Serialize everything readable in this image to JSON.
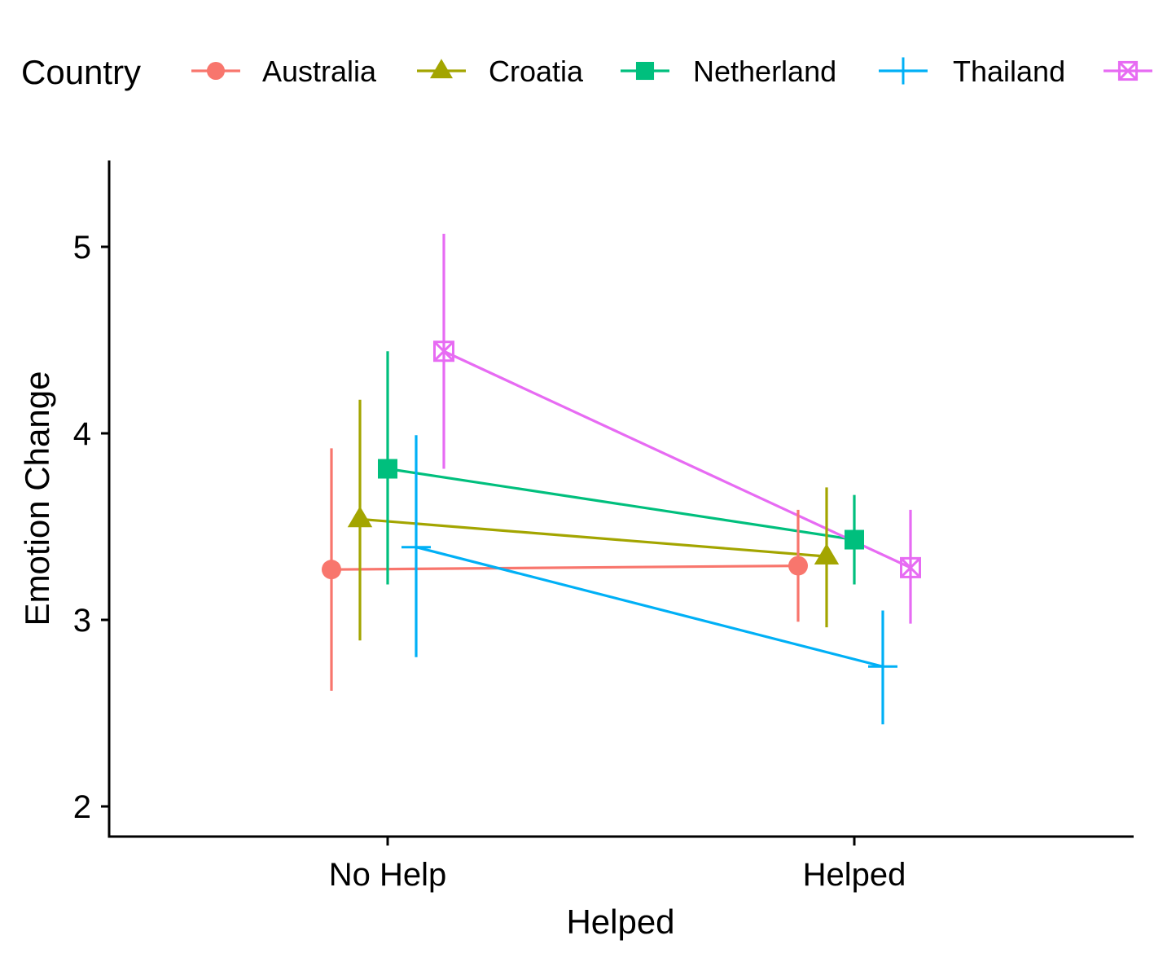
{
  "chart_data": {
    "type": "line",
    "title": "",
    "xlabel": "Helped",
    "ylabel": "Emotion Change",
    "categories": [
      "No Help",
      "Helped"
    ],
    "ylim": [
      1.85,
      5.45
    ],
    "yticks": [
      2,
      3,
      4,
      5
    ],
    "grid": false,
    "legend": {
      "title": "Country",
      "placement": "top"
    },
    "series": [
      {
        "name": "Australia",
        "color": "#F8766D",
        "marker": "circle",
        "values": [
          3.27,
          3.29
        ],
        "lower": [
          2.62,
          2.99
        ],
        "upper": [
          3.92,
          3.59
        ]
      },
      {
        "name": "Croatia",
        "color": "#A3A500",
        "marker": "triangle",
        "values": [
          3.54,
          3.34
        ],
        "lower": [
          2.89,
          2.96
        ],
        "upper": [
          4.18,
          3.71
        ]
      },
      {
        "name": "Netherland",
        "color": "#00BF7D",
        "marker": "square",
        "values": [
          3.81,
          3.43
        ],
        "lower": [
          3.19,
          3.19
        ],
        "upper": [
          4.44,
          3.67
        ]
      },
      {
        "name": "Thailand",
        "color": "#00B0F6",
        "marker": "plus",
        "values": [
          3.39,
          2.75
        ],
        "lower": [
          2.8,
          2.44
        ],
        "upper": [
          3.99,
          3.05
        ]
      },
      {
        "name": "",
        "color": "#E76BF3",
        "marker": "boxcross",
        "values": [
          4.44,
          3.28
        ],
        "lower": [
          3.81,
          2.98
        ],
        "upper": [
          5.07,
          3.59
        ]
      }
    ]
  }
}
